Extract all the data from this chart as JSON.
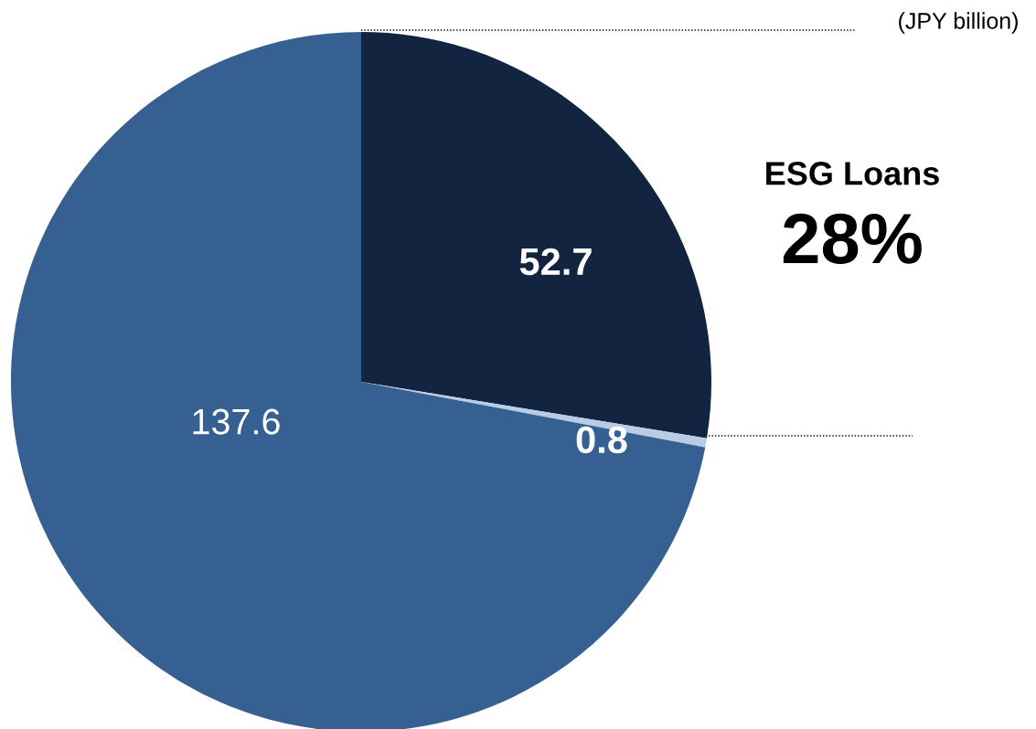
{
  "chart_data": {
    "type": "pie",
    "categories": [
      null,
      null,
      null
    ],
    "values": [
      52.7,
      0.8,
      137.6
    ],
    "colors": [
      "#12243f",
      "#b8cce4",
      "#376092"
    ],
    "data_labels": true,
    "annotations": [
      "(JPY billion)",
      "ESG Loans",
      "28%"
    ]
  }
}
